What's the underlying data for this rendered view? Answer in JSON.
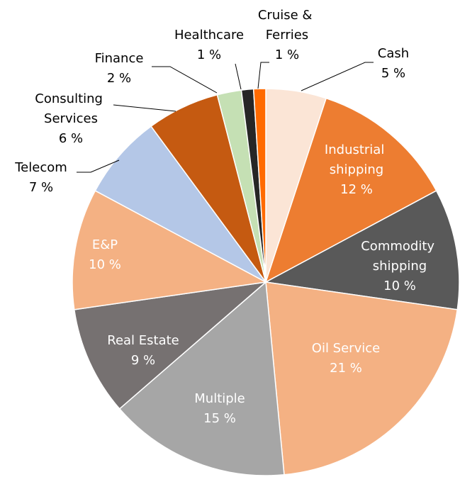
{
  "chart_data": {
    "type": "pie",
    "categories": [
      "Cash",
      "Industrial shipping",
      "Commodity shipping",
      "Oil Service",
      "Multiple",
      "Real Estate",
      "E&P",
      "Telecom",
      "Consulting Services",
      "Finance",
      "Healthcare",
      "Cruise & Ferries"
    ],
    "values": [
      5,
      12,
      10,
      21,
      15,
      9,
      10,
      7,
      6,
      2,
      1,
      1
    ],
    "value_labels": [
      "5 %",
      "12 %",
      "10 %",
      "21 %",
      "15 %",
      "9 %",
      "10 %",
      "7 %",
      "6 %",
      "2 %",
      "1 %",
      "1 %"
    ],
    "colors": [
      "#fbe5d6",
      "#ed7d31",
      "#595959",
      "#f4b183",
      "#a6a6a6",
      "#767171",
      "#f4b183",
      "#b4c7e7",
      "#c55a11",
      "#c5e0b4",
      "#262626",
      "#ff6a00"
    ]
  }
}
